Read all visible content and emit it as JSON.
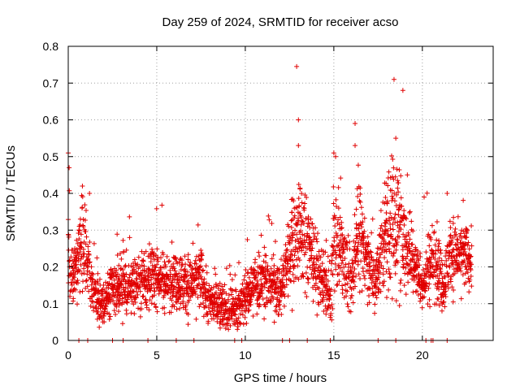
{
  "chart_data": {
    "type": "scatter",
    "title": "Day 259 of 2024, SRMTID for receiver acso",
    "xlabel": "GPS time / hours",
    "ylabel": "SRMTID / TECUs",
    "xlim": [
      0,
      24
    ],
    "ylim": [
      0,
      0.8
    ],
    "xticks": [
      0,
      5,
      10,
      15,
      20
    ],
    "xtick_labels": [
      "0",
      "5",
      "10",
      "15",
      "20"
    ],
    "yticks": [
      0,
      0.1,
      0.2,
      0.3,
      0.4,
      0.5,
      0.6,
      0.7,
      0.8
    ],
    "ytick_labels": [
      "0",
      "0.1",
      "0.2",
      "0.3",
      "0.4",
      "0.5",
      "0.6",
      "0.7",
      "0.8"
    ],
    "grid": true,
    "marker": "plus",
    "color": "#e00000",
    "series": [
      {
        "name": "SRMTID",
        "profile_hours": [
          0,
          0.1,
          0.3,
          0.6,
          0.8,
          1.0,
          1.3,
          1.6,
          2.0,
          2.5,
          3.0,
          3.5,
          4.0,
          4.5,
          5.0,
          5.5,
          6.0,
          6.5,
          7.0,
          7.5,
          8.0,
          8.5,
          9.0,
          9.5,
          10.0,
          10.5,
          11.0,
          11.5,
          12.0,
          12.5,
          12.9,
          13.3,
          13.7,
          14.0,
          14.5,
          14.8,
          15.0,
          15.3,
          15.7,
          16.0,
          16.3,
          16.7,
          17.0,
          17.3,
          17.7,
          18.0,
          18.3,
          18.6,
          18.9,
          19.2,
          19.6,
          20.0,
          20.4,
          20.8,
          21.2,
          21.6,
          22.0,
          22.4,
          22.8
        ],
        "profile_median": [
          0.3,
          0.2,
          0.18,
          0.22,
          0.28,
          0.25,
          0.15,
          0.12,
          0.1,
          0.13,
          0.15,
          0.14,
          0.17,
          0.16,
          0.18,
          0.15,
          0.17,
          0.16,
          0.15,
          0.17,
          0.1,
          0.1,
          0.08,
          0.09,
          0.12,
          0.15,
          0.17,
          0.15,
          0.13,
          0.25,
          0.3,
          0.28,
          0.25,
          0.2,
          0.15,
          0.1,
          0.27,
          0.25,
          0.2,
          0.15,
          0.3,
          0.25,
          0.2,
          0.15,
          0.25,
          0.3,
          0.35,
          0.3,
          0.28,
          0.25,
          0.2,
          0.15,
          0.2,
          0.22,
          0.15,
          0.25,
          0.22,
          0.23,
          0.22
        ],
        "profile_spread": [
          0.12,
          0.06,
          0.05,
          0.07,
          0.09,
          0.07,
          0.06,
          0.05,
          0.04,
          0.05,
          0.05,
          0.05,
          0.06,
          0.05,
          0.06,
          0.05,
          0.05,
          0.06,
          0.05,
          0.06,
          0.04,
          0.04,
          0.04,
          0.04,
          0.05,
          0.05,
          0.06,
          0.05,
          0.05,
          0.08,
          0.12,
          0.1,
          0.08,
          0.06,
          0.05,
          0.05,
          0.1,
          0.08,
          0.07,
          0.06,
          0.1,
          0.08,
          0.06,
          0.05,
          0.09,
          0.12,
          0.14,
          0.12,
          0.1,
          0.08,
          0.06,
          0.05,
          0.07,
          0.07,
          0.05,
          0.07,
          0.06,
          0.06,
          0.06
        ],
        "peaks": [
          {
            "x": 0.0,
            "y": 0.51
          },
          {
            "x": 0.05,
            "y": 0.47
          },
          {
            "x": 0.8,
            "y": 0.42
          },
          {
            "x": 1.2,
            "y": 0.4
          },
          {
            "x": 12.9,
            "y": 0.745
          },
          {
            "x": 13.0,
            "y": 0.6
          },
          {
            "x": 13.0,
            "y": 0.53
          },
          {
            "x": 15.0,
            "y": 0.51
          },
          {
            "x": 15.1,
            "y": 0.5
          },
          {
            "x": 16.2,
            "y": 0.59
          },
          {
            "x": 16.2,
            "y": 0.53
          },
          {
            "x": 18.4,
            "y": 0.71
          },
          {
            "x": 18.9,
            "y": 0.68
          },
          {
            "x": 18.5,
            "y": 0.55
          },
          {
            "x": 21.4,
            "y": 0.4
          },
          {
            "x": 20.1,
            "y": 0.39
          }
        ],
        "zero_values_at_hours": [
          0.6,
          1.1,
          2.5,
          3.1,
          4.5,
          6.1,
          7.1,
          9.4,
          9.8,
          12.1,
          12.5,
          13.5,
          14.8,
          17.5,
          18.5,
          20.2,
          20.5,
          20.6,
          21.4
        ]
      }
    ]
  }
}
